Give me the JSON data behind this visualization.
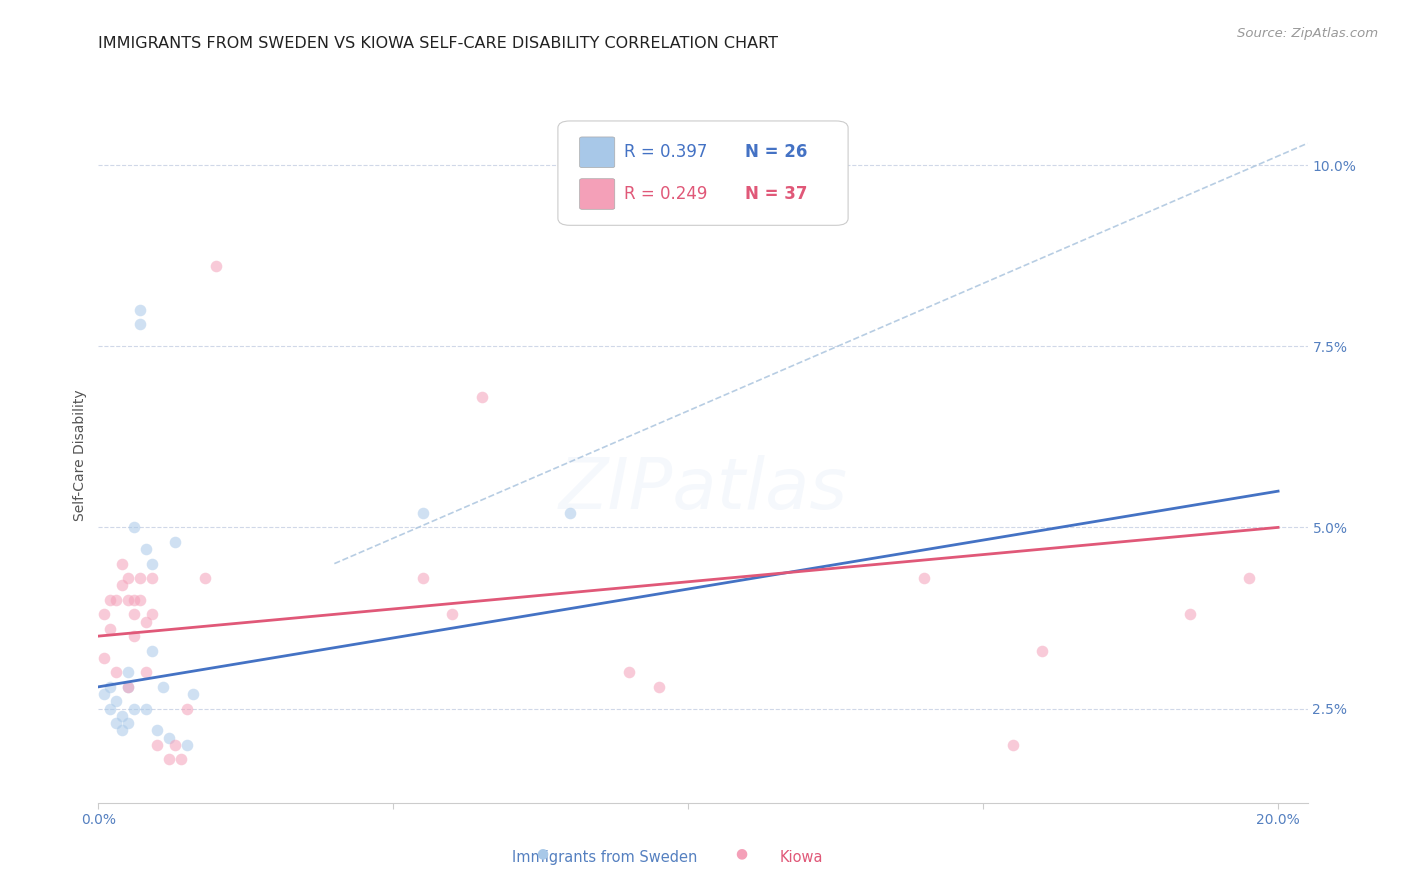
{
  "title": "IMMIGRANTS FROM SWEDEN VS KIOWA SELF-CARE DISABILITY CORRELATION CHART",
  "source": "Source: ZipAtlas.com",
  "ylabel": "Self-Care Disability",
  "xlim": [
    0.0,
    0.205
  ],
  "ylim": [
    0.012,
    0.108
  ],
  "xtick_positions": [
    0.0,
    0.05,
    0.1,
    0.15,
    0.2
  ],
  "xtick_labels": [
    "0.0%",
    "",
    "",
    "",
    "20.0%"
  ],
  "ytick_positions": [
    0.025,
    0.05,
    0.075,
    0.1
  ],
  "ytick_labels": [
    "2.5%",
    "5.0%",
    "7.5%",
    "10.0%"
  ],
  "legend_r1": "R = 0.397",
  "legend_n1": "N = 26",
  "legend_r2": "R = 0.249",
  "legend_n2": "N = 37",
  "legend_label1": "Immigrants from Sweden",
  "legend_label2": "Kiowa",
  "sweden_color": "#a8c8e8",
  "kiowa_color": "#f4a0b8",
  "sweden_line_color": "#4472c4",
  "kiowa_line_color": "#e05878",
  "dashed_line_color": "#b0c8e0",
  "background_color": "#ffffff",
  "grid_color": "#d0d8e8",
  "watermark_text": "ZIPatlas",
  "sweden_x": [
    0.001,
    0.002,
    0.002,
    0.003,
    0.003,
    0.004,
    0.004,
    0.005,
    0.005,
    0.005,
    0.006,
    0.006,
    0.007,
    0.007,
    0.008,
    0.008,
    0.009,
    0.009,
    0.01,
    0.011,
    0.012,
    0.013,
    0.015,
    0.016,
    0.055,
    0.08
  ],
  "sweden_y": [
    0.027,
    0.025,
    0.028,
    0.023,
    0.026,
    0.024,
    0.022,
    0.028,
    0.023,
    0.03,
    0.025,
    0.05,
    0.078,
    0.08,
    0.025,
    0.047,
    0.033,
    0.045,
    0.022,
    0.028,
    0.021,
    0.048,
    0.02,
    0.027,
    0.052,
    0.052
  ],
  "kiowa_x": [
    0.001,
    0.001,
    0.002,
    0.002,
    0.003,
    0.003,
    0.004,
    0.004,
    0.005,
    0.005,
    0.005,
    0.006,
    0.006,
    0.006,
    0.007,
    0.007,
    0.008,
    0.008,
    0.009,
    0.009,
    0.01,
    0.012,
    0.013,
    0.014,
    0.015,
    0.018,
    0.02,
    0.055,
    0.06,
    0.065,
    0.09,
    0.095,
    0.14,
    0.155,
    0.16,
    0.185,
    0.195
  ],
  "kiowa_y": [
    0.032,
    0.038,
    0.04,
    0.036,
    0.04,
    0.03,
    0.045,
    0.042,
    0.04,
    0.043,
    0.028,
    0.038,
    0.04,
    0.035,
    0.043,
    0.04,
    0.03,
    0.037,
    0.043,
    0.038,
    0.02,
    0.018,
    0.02,
    0.018,
    0.025,
    0.043,
    0.086,
    0.043,
    0.038,
    0.068,
    0.03,
    0.028,
    0.043,
    0.02,
    0.033,
    0.038,
    0.043
  ],
  "sweden_line_x": [
    0.0,
    0.2
  ],
  "sweden_line_y": [
    0.028,
    0.055
  ],
  "kiowa_line_x": [
    0.0,
    0.2
  ],
  "kiowa_line_y": [
    0.035,
    0.05
  ],
  "dashed_line_x": [
    0.04,
    0.205
  ],
  "dashed_line_y": [
    0.045,
    0.103
  ],
  "title_fontsize": 11.5,
  "source_fontsize": 9.5,
  "ylabel_fontsize": 10,
  "tick_fontsize": 10,
  "legend_fontsize": 12,
  "marker_size": 70,
  "marker_alpha": 0.55,
  "watermark_fontsize": 52,
  "watermark_alpha": 0.12
}
